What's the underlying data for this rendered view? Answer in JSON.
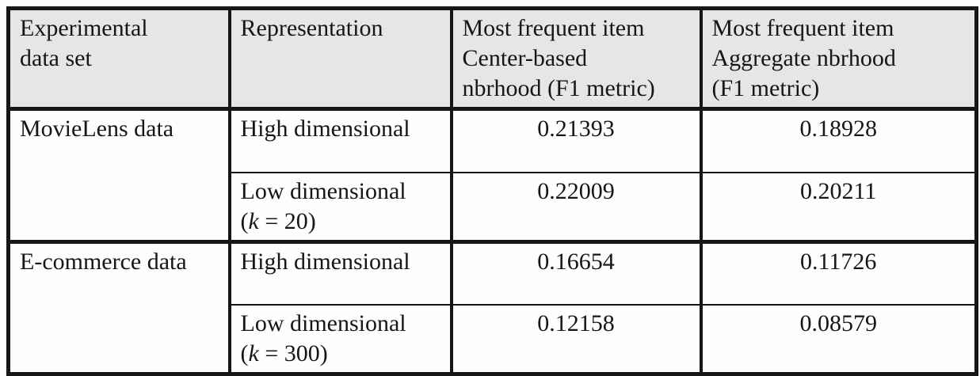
{
  "style": {
    "header_bg": "#e6e6e6",
    "border_color": "#161616",
    "text_color": "#161616",
    "body_bg": "#ffffff"
  },
  "table": {
    "headers": [
      {
        "line1": "Experimental",
        "line2": "data set"
      },
      {
        "line1": "Representation"
      },
      {
        "line1": "Most frequent item",
        "line2": "Center-based",
        "line3": "nbrhood (F1 metric)"
      },
      {
        "line1": "Most frequent item",
        "line2": "Aggregate nbrhood",
        "line3": "(F1 metric)"
      }
    ],
    "groups": [
      {
        "dataset": "MovieLens data",
        "rows": [
          {
            "representation": "High dimensional",
            "center_based_f1": "0.21393",
            "aggregate_f1": "0.18928"
          },
          {
            "representation": "Low dimensional",
            "k_open": "(",
            "k_symbol": "k",
            "k_rest": " = 20)",
            "center_based_f1": "0.22009",
            "aggregate_f1": "0.20211"
          }
        ]
      },
      {
        "dataset": "E-commerce data",
        "rows": [
          {
            "representation": "High dimensional",
            "center_based_f1": "0.16654",
            "aggregate_f1": "0.11726"
          },
          {
            "representation": "Low dimensional",
            "k_open": "(",
            "k_symbol": "k",
            "k_rest": " = 300)",
            "center_based_f1": "0.12158",
            "aggregate_f1": "0.08579"
          }
        ]
      }
    ]
  },
  "chart_data": {
    "type": "table",
    "columns": [
      "Experimental data set",
      "Representation",
      "Most frequent item Center-based nbrhood (F1 metric)",
      "Most frequent item Aggregate nbrhood (F1 metric)"
    ],
    "rows": [
      [
        "MovieLens data",
        "High dimensional",
        0.21393,
        0.18928
      ],
      [
        "MovieLens data",
        "Low dimensional (k = 20)",
        0.22009,
        0.20211
      ],
      [
        "E-commerce data",
        "High dimensional",
        0.16654,
        0.11726
      ],
      [
        "E-commerce data",
        "Low dimensional (k = 300)",
        0.12158,
        0.08579
      ]
    ]
  }
}
